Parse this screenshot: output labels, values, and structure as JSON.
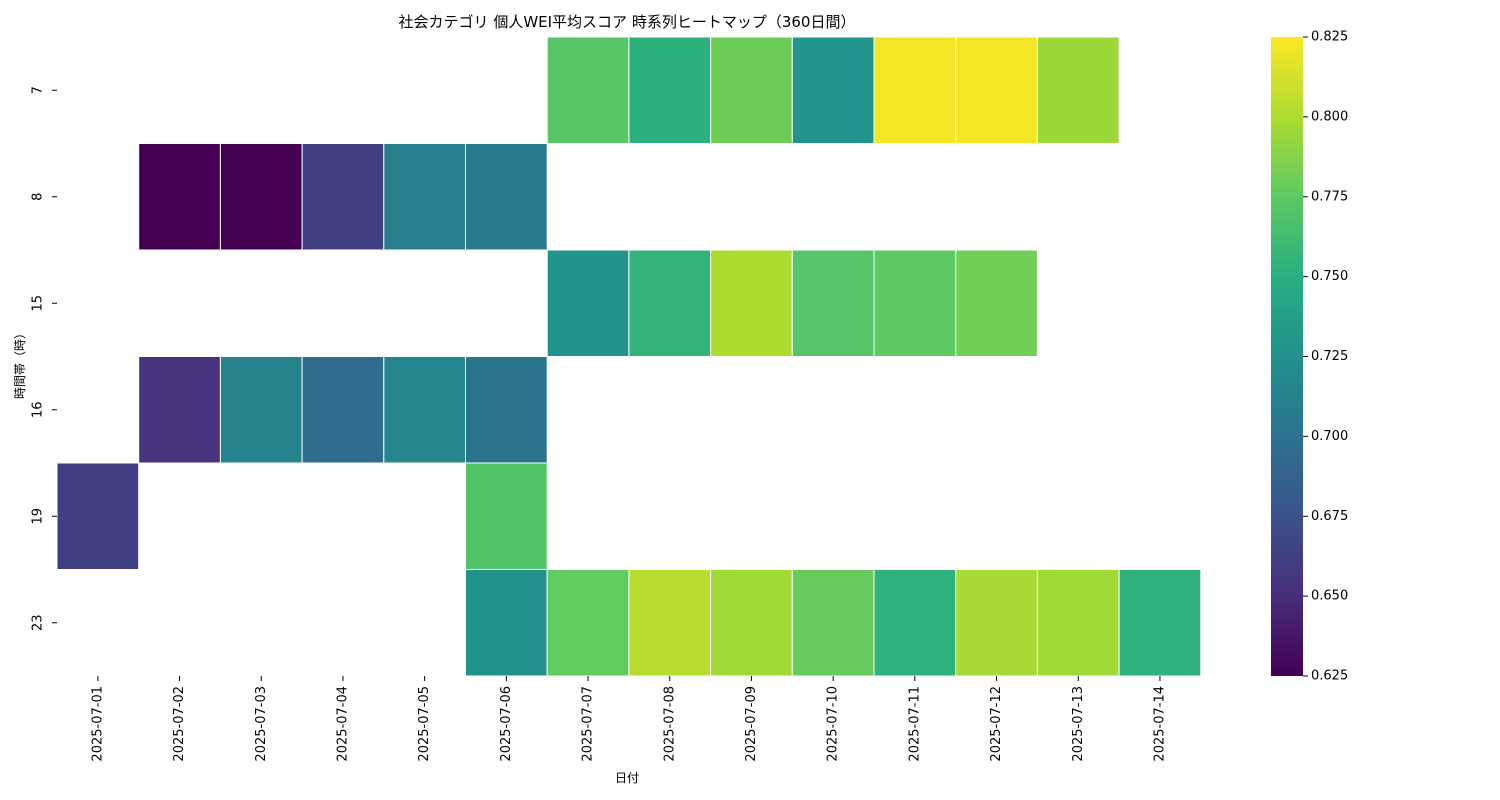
{
  "chart_data": {
    "type": "heatmap",
    "title": "社会カテゴリ 個人WEI平均スコア 時系列ヒートマップ（360日間）",
    "xlabel": "日付",
    "ylabel": "時間帯（時）",
    "x": [
      "2025-07-01",
      "2025-07-02",
      "2025-07-03",
      "2025-07-04",
      "2025-07-05",
      "2025-07-06",
      "2025-07-07",
      "2025-07-08",
      "2025-07-09",
      "2025-07-10",
      "2025-07-11",
      "2025-07-12",
      "2025-07-13",
      "2025-07-14"
    ],
    "y": [
      "7",
      "8",
      "15",
      "16",
      "19",
      "23"
    ],
    "values": [
      [
        null,
        null,
        null,
        null,
        null,
        null,
        0.772,
        0.752,
        0.78,
        0.728,
        0.822,
        0.822,
        0.795,
        null
      ],
      [
        null,
        0.625,
        0.625,
        0.662,
        0.71,
        0.707,
        null,
        null,
        null,
        null,
        null,
        null,
        null,
        null
      ],
      [
        null,
        null,
        null,
        null,
        null,
        null,
        0.727,
        0.755,
        0.8,
        0.771,
        0.775,
        0.781,
        null,
        null
      ],
      [
        null,
        0.655,
        0.713,
        0.696,
        0.717,
        0.702,
        null,
        null,
        null,
        null,
        null,
        null,
        null,
        null
      ],
      [
        0.662,
        null,
        null,
        null,
        null,
        0.77,
        null,
        null,
        null,
        null,
        null,
        null,
        null,
        null
      ],
      [
        null,
        null,
        null,
        null,
        null,
        0.727,
        0.776,
        0.803,
        0.796,
        0.778,
        0.753,
        0.798,
        0.796,
        0.753
      ]
    ],
    "colormap": "viridis",
    "colorbar": {
      "min": 0.625,
      "max": 0.825,
      "ticks": [
        "0.625",
        "0.650",
        "0.675",
        "0.700",
        "0.725",
        "0.750",
        "0.775",
        "0.800",
        "0.825"
      ]
    }
  }
}
